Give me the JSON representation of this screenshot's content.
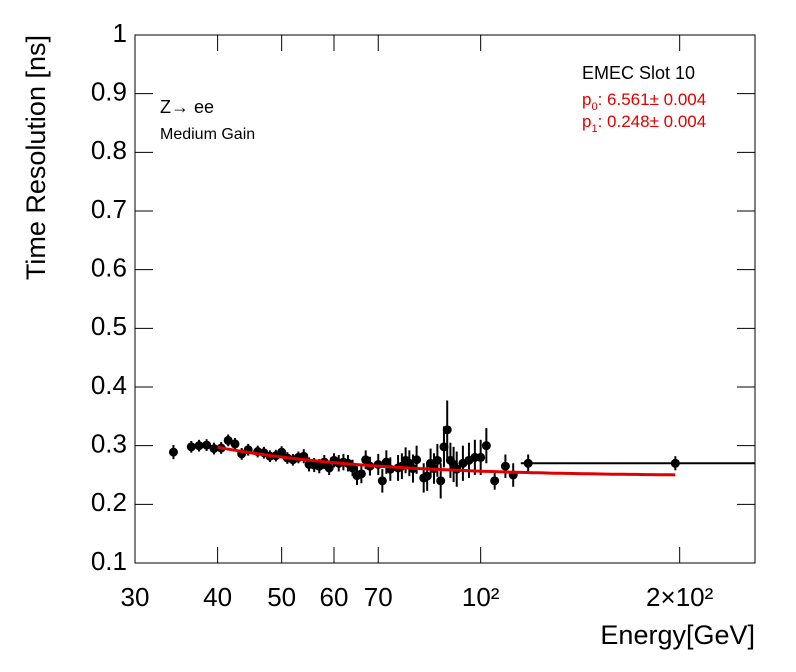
{
  "chart_data": {
    "type": "scatter",
    "xlabel": "Energy[GeV]",
    "ylabel": "Time Resolution [ns]",
    "annotations": [
      "Z→ ee",
      "Medium Gain",
      "EMEC Slot 10"
    ],
    "fit_params": [
      {
        "symbol": "p",
        "index": "0",
        "value": 6.561,
        "error": 0.004
      },
      {
        "symbol": "p",
        "index": "1",
        "value": 0.248,
        "error": 0.004
      }
    ],
    "fit_color": "#e00000",
    "fit_range": [
      40,
      197
    ],
    "reference_line": {
      "value": 0.27,
      "x": [
        115,
        260
      ]
    },
    "log_x": true,
    "xlim": [
      30,
      260
    ],
    "ylim": [
      0.1,
      1
    ],
    "xticks": [
      30,
      40,
      50,
      60,
      70,
      {
        "value": 100,
        "label": "10²"
      },
      {
        "value": 200,
        "label": "2×10²"
      }
    ],
    "yticks": [
      0.1,
      0.2,
      0.3,
      0.4,
      0.5,
      0.6,
      0.7,
      0.8,
      0.9,
      1
    ],
    "color": "#000000",
    "x": [
      34.3,
      36.5,
      37.5,
      38.5,
      39.5,
      40.5,
      41.5,
      42.5,
      43.5,
      44.5,
      46,
      47,
      48,
      49,
      50,
      51,
      52,
      53,
      54,
      55,
      56,
      57,
      58,
      59,
      60,
      61,
      62,
      63,
      64,
      65,
      66,
      67,
      68,
      70,
      71,
      72,
      73,
      75,
      76,
      77,
      78,
      79,
      80,
      82,
      83,
      84,
      85,
      86,
      87,
      88,
      89,
      90,
      91,
      92,
      94,
      96,
      98,
      100,
      102,
      105,
      109,
      112,
      118,
      197
    ],
    "values": [
      0.289,
      0.298,
      0.3,
      0.301,
      0.295,
      0.296,
      0.309,
      0.303,
      0.286,
      0.293,
      0.29,
      0.288,
      0.282,
      0.283,
      0.289,
      0.279,
      0.276,
      0.28,
      0.282,
      0.268,
      0.267,
      0.265,
      0.272,
      0.262,
      0.275,
      0.27,
      0.272,
      0.27,
      0.262,
      0.249,
      0.252,
      0.276,
      0.265,
      0.268,
      0.24,
      0.272,
      0.26,
      0.262,
      0.265,
      0.275,
      0.27,
      0.261,
      0.276,
      0.245,
      0.248,
      0.27,
      0.261,
      0.275,
      0.24,
      0.298,
      0.327,
      0.275,
      0.268,
      0.26,
      0.27,
      0.275,
      0.28,
      0.28,
      0.3,
      0.24,
      0.265,
      0.25,
      0.27,
      0.27
    ],
    "errors": [
      0.012,
      0.01,
      0.01,
      0.01,
      0.01,
      0.01,
      0.01,
      0.01,
      0.01,
      0.01,
      0.01,
      0.01,
      0.01,
      0.01,
      0.01,
      0.01,
      0.01,
      0.01,
      0.012,
      0.012,
      0.012,
      0.012,
      0.012,
      0.012,
      0.012,
      0.014,
      0.014,
      0.014,
      0.014,
      0.016,
      0.016,
      0.016,
      0.016,
      0.018,
      0.02,
      0.02,
      0.02,
      0.022,
      0.022,
      0.022,
      0.022,
      0.024,
      0.024,
      0.025,
      0.025,
      0.025,
      0.026,
      0.028,
      0.03,
      0.035,
      0.05,
      0.03,
      0.03,
      0.03,
      0.03,
      0.03,
      0.03,
      0.03,
      0.03,
      0.015,
      0.02,
      0.02,
      0.015,
      0.012
    ]
  }
}
